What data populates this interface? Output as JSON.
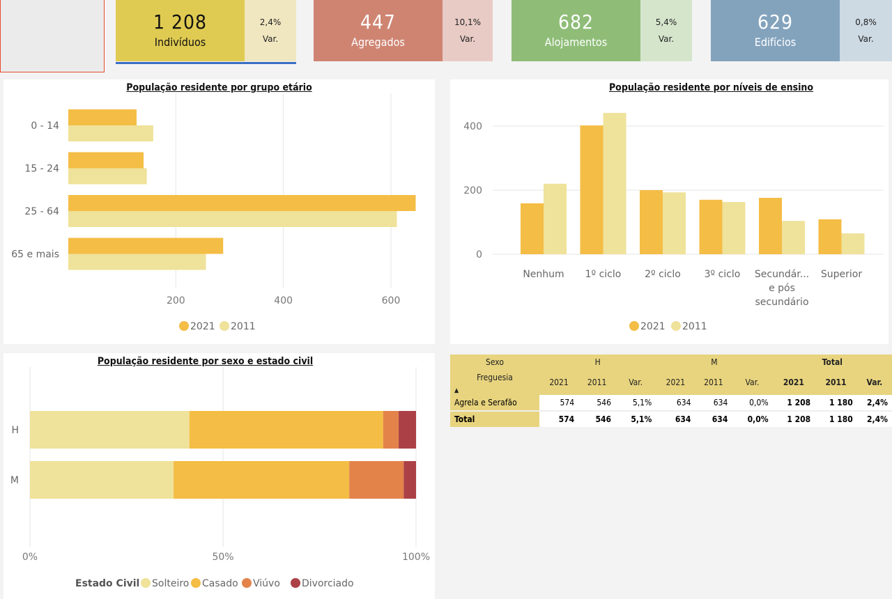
{
  "kpis": [
    {
      "value": "1 208",
      "label": "Indivíduos",
      "var": "2,4%",
      "var_label": "Var.",
      "main_color": "#e0cb52",
      "var_color": "#f0e6c0",
      "text_color": "#111111",
      "selected": true
    },
    {
      "value": "447",
      "label": "Agregados",
      "var": "10,1%",
      "var_label": "Var.",
      "main_color": "#cf8472",
      "var_color": "#e8cbc5",
      "text_color": "#ffffff",
      "selected": false
    },
    {
      "value": "682",
      "label": "Alojamentos",
      "var": "5,4%",
      "var_label": "Var.",
      "main_color": "#8fbd78",
      "var_color": "#d5e5cc",
      "text_color": "#ffffff",
      "selected": false
    },
    {
      "value": "629",
      "label": "Edifícios",
      "var": "0,8%",
      "var_label": "Var.",
      "main_color": "#83a3bd",
      "var_color": "#cdd9e3",
      "text_color": "#ffffff",
      "selected": false
    }
  ],
  "colors": {
    "y2021": "#f4bd45",
    "y2011": "#efe29a",
    "solteiro": "#efe29a",
    "casado": "#f4bd45",
    "viuvo": "#e3834a",
    "divorciado": "#ab4146",
    "selected_underline": "#3b6fc4"
  },
  "chart_data": [
    {
      "type": "bar",
      "orientation": "horizontal",
      "title": "População residente por grupo etário",
      "categories": [
        "0 - 14",
        "15 - 24",
        "25 - 64",
        "65 e mais"
      ],
      "series": [
        {
          "name": "2021",
          "values": [
            127,
            140,
            646,
            288
          ]
        },
        {
          "name": "2011",
          "values": [
            158,
            146,
            611,
            256
          ]
        }
      ],
      "xticks": [
        200,
        400,
        600
      ],
      "xlim": [
        0,
        660
      ],
      "grid": true,
      "legend": "bottom-center"
    },
    {
      "type": "bar",
      "title": "População residente por níveis de ensino",
      "categories": [
        "Nenhum",
        "1º ciclo",
        "2º ciclo",
        "3º ciclo",
        "Secundár... e pós secundário",
        "Superior"
      ],
      "category_lines": [
        [
          "Nenhum"
        ],
        [
          "1º ciclo"
        ],
        [
          "2º ciclo"
        ],
        [
          "3º ciclo"
        ],
        [
          "Secundár...",
          "e pós",
          "secundário"
        ],
        [
          "Superior"
        ]
      ],
      "series": [
        {
          "name": "2021",
          "values": [
            159,
            402,
            200,
            170,
            176,
            109
          ]
        },
        {
          "name": "2011",
          "values": [
            220,
            441,
            193,
            163,
            104,
            65
          ]
        }
      ],
      "yticks": [
        0,
        200,
        400
      ],
      "ylim": [
        0,
        450
      ],
      "grid": true,
      "legend": "bottom-center"
    },
    {
      "type": "bar",
      "orientation": "horizontal",
      "stacked": "100%",
      "title": "População residente por sexo e estado civil",
      "categories": [
        "H",
        "M"
      ],
      "series": [
        {
          "name": "Solteiro",
          "values": [
            41.3,
            37.2
          ]
        },
        {
          "name": "Casado",
          "values": [
            50.2,
            45.5
          ]
        },
        {
          "name": "Viúvo",
          "values": [
            4.0,
            14.1
          ]
        },
        {
          "name": "Divorciado",
          "values": [
            4.5,
            3.2
          ]
        }
      ],
      "xticks": [
        "0%",
        "50%",
        "100%"
      ],
      "xlim": [
        0,
        100
      ],
      "legend_title": "Estado Civil",
      "legend": "bottom-center"
    }
  ],
  "matrix": {
    "header_top": [
      "Sexo",
      "H",
      "M",
      "Total"
    ],
    "row_header_label": "Freguesia",
    "sort_icon": "▲",
    "sub_headers": [
      "2021",
      "2011",
      "Var.",
      "2021",
      "2011",
      "Var.",
      "2021",
      "2011",
      "Var."
    ],
    "rows": [
      {
        "label": "Agrela e Serafão",
        "cells": [
          "574",
          "546",
          "5,1%",
          "634",
          "634",
          "0,0%",
          "1 208",
          "1 180",
          "2,4%"
        ]
      },
      {
        "label": "Total",
        "cells": [
          "574",
          "546",
          "5,1%",
          "634",
          "634",
          "0,0%",
          "1 208",
          "1 180",
          "2,4%"
        ]
      }
    ]
  }
}
